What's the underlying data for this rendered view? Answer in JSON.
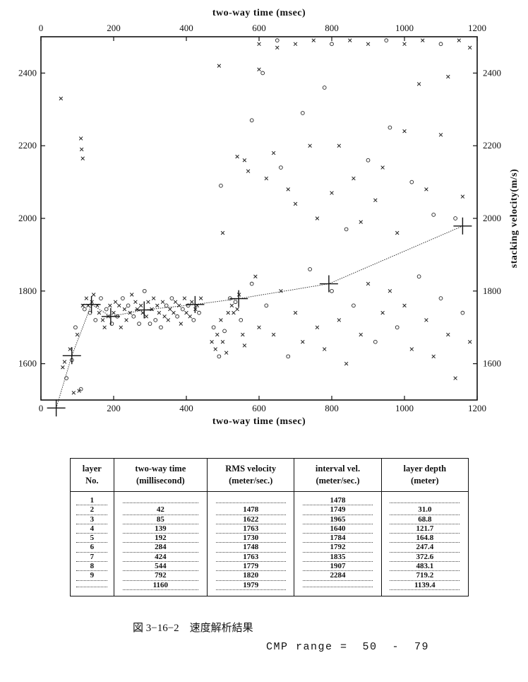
{
  "chart_data": {
    "type": "scatter",
    "x_axis_label": "two-way time (msec)",
    "y_axis_label": "stacking velocity(m/s)",
    "xlim": [
      0,
      1200
    ],
    "ylim": [
      1500,
      2500
    ],
    "x_ticks": [
      0,
      200,
      400,
      600,
      800,
      1000,
      1200
    ],
    "y_ticks": [
      1600,
      1800,
      2000,
      2200,
      2400
    ],
    "grid": false,
    "velocity_picks": [
      [
        42,
        1478
      ],
      [
        85,
        1622
      ],
      [
        139,
        1763
      ],
      [
        192,
        1730
      ],
      [
        284,
        1748
      ],
      [
        424,
        1763
      ],
      [
        544,
        1779
      ],
      [
        792,
        1820
      ],
      [
        1160,
        1979
      ]
    ],
    "semblance_points": [
      [
        60,
        1590,
        "x"
      ],
      [
        65,
        1605,
        "x"
      ],
      [
        70,
        1560,
        "o"
      ],
      [
        80,
        1640,
        "x"
      ],
      [
        85,
        1610,
        "o"
      ],
      [
        90,
        1520,
        "x"
      ],
      [
        95,
        1700,
        "o"
      ],
      [
        100,
        1680,
        "x"
      ],
      [
        105,
        1525,
        "x"
      ],
      [
        110,
        1530,
        "o"
      ],
      [
        115,
        1760,
        "x"
      ],
      [
        120,
        1750,
        "o"
      ],
      [
        125,
        1780,
        "x"
      ],
      [
        130,
        1760,
        "x"
      ],
      [
        135,
        1740,
        "o"
      ],
      [
        140,
        1770,
        "x"
      ],
      [
        145,
        1790,
        "x"
      ],
      [
        150,
        1720,
        "o"
      ],
      [
        155,
        1760,
        "x"
      ],
      [
        160,
        1740,
        "x"
      ],
      [
        165,
        1780,
        "o"
      ],
      [
        170,
        1720,
        "x"
      ],
      [
        175,
        1700,
        "x"
      ],
      [
        180,
        1750,
        "o"
      ],
      [
        185,
        1730,
        "x"
      ],
      [
        190,
        1760,
        "x"
      ],
      [
        195,
        1710,
        "o"
      ],
      [
        200,
        1740,
        "x"
      ],
      [
        205,
        1770,
        "x"
      ],
      [
        210,
        1730,
        "o"
      ],
      [
        215,
        1760,
        "x"
      ],
      [
        220,
        1700,
        "x"
      ],
      [
        225,
        1780,
        "o"
      ],
      [
        230,
        1750,
        "x"
      ],
      [
        235,
        1720,
        "x"
      ],
      [
        240,
        1760,
        "o"
      ],
      [
        245,
        1740,
        "x"
      ],
      [
        250,
        1790,
        "x"
      ],
      [
        255,
        1730,
        "o"
      ],
      [
        260,
        1770,
        "x"
      ],
      [
        265,
        1750,
        "x"
      ],
      [
        270,
        1710,
        "o"
      ],
      [
        275,
        1760,
        "x"
      ],
      [
        280,
        1740,
        "x"
      ],
      [
        285,
        1800,
        "o"
      ],
      [
        290,
        1730,
        "x"
      ],
      [
        295,
        1770,
        "x"
      ],
      [
        300,
        1710,
        "o"
      ],
      [
        305,
        1750,
        "x"
      ],
      [
        310,
        1780,
        "x"
      ],
      [
        315,
        1720,
        "o"
      ],
      [
        320,
        1760,
        "x"
      ],
      [
        325,
        1740,
        "x"
      ],
      [
        330,
        1700,
        "o"
      ],
      [
        335,
        1770,
        "x"
      ],
      [
        340,
        1730,
        "x"
      ],
      [
        345,
        1760,
        "o"
      ],
      [
        350,
        1720,
        "x"
      ],
      [
        355,
        1750,
        "x"
      ],
      [
        360,
        1780,
        "o"
      ],
      [
        365,
        1740,
        "x"
      ],
      [
        370,
        1770,
        "x"
      ],
      [
        375,
        1730,
        "o"
      ],
      [
        380,
        1760,
        "x"
      ],
      [
        385,
        1710,
        "x"
      ],
      [
        390,
        1750,
        "o"
      ],
      [
        395,
        1780,
        "x"
      ],
      [
        400,
        1740,
        "x"
      ],
      [
        405,
        1760,
        "o"
      ],
      [
        410,
        1730,
        "x"
      ],
      [
        415,
        1770,
        "x"
      ],
      [
        420,
        1720,
        "o"
      ],
      [
        425,
        1750,
        "x"
      ],
      [
        430,
        1760,
        "x"
      ],
      [
        435,
        1740,
        "o"
      ],
      [
        440,
        1780,
        "x"
      ],
      [
        470,
        1660,
        "x"
      ],
      [
        475,
        1700,
        "o"
      ],
      [
        480,
        1640,
        "x"
      ],
      [
        485,
        1680,
        "x"
      ],
      [
        490,
        1620,
        "o"
      ],
      [
        495,
        1720,
        "x"
      ],
      [
        500,
        1660,
        "x"
      ],
      [
        505,
        1690,
        "o"
      ],
      [
        510,
        1630,
        "x"
      ],
      [
        515,
        1740,
        "x"
      ],
      [
        520,
        1780,
        "o"
      ],
      [
        525,
        1760,
        "x"
      ],
      [
        530,
        1740,
        "x"
      ],
      [
        535,
        1770,
        "o"
      ],
      [
        540,
        1750,
        "x"
      ],
      [
        545,
        1790,
        "x"
      ],
      [
        550,
        1720,
        "o"
      ],
      [
        555,
        1680,
        "x"
      ],
      [
        560,
        1650,
        "x"
      ],
      [
        580,
        1820,
        "o"
      ],
      [
        590,
        1840,
        "x"
      ],
      [
        600,
        1700,
        "x"
      ],
      [
        620,
        1760,
        "o"
      ],
      [
        640,
        1680,
        "x"
      ],
      [
        660,
        1800,
        "x"
      ],
      [
        680,
        1620,
        "o"
      ],
      [
        700,
        1740,
        "x"
      ],
      [
        720,
        1660,
        "x"
      ],
      [
        740,
        1860,
        "o"
      ],
      [
        760,
        1700,
        "x"
      ],
      [
        780,
        1640,
        "x"
      ],
      [
        800,
        1800,
        "o"
      ],
      [
        820,
        1720,
        "x"
      ],
      [
        840,
        1600,
        "x"
      ],
      [
        860,
        1760,
        "o"
      ],
      [
        880,
        1680,
        "x"
      ],
      [
        900,
        1820,
        "x"
      ],
      [
        920,
        1660,
        "o"
      ],
      [
        940,
        1740,
        "x"
      ],
      [
        960,
        1800,
        "x"
      ],
      [
        980,
        1700,
        "o"
      ],
      [
        1000,
        1760,
        "x"
      ],
      [
        1020,
        1640,
        "x"
      ],
      [
        1040,
        1840,
        "o"
      ],
      [
        1060,
        1720,
        "x"
      ],
      [
        1080,
        1620,
        "x"
      ],
      [
        1100,
        1780,
        "o"
      ],
      [
        1120,
        1680,
        "x"
      ],
      [
        1140,
        1560,
        "x"
      ],
      [
        1160,
        1740,
        "o"
      ],
      [
        1180,
        1660,
        "x"
      ],
      [
        55,
        2330,
        "x"
      ],
      [
        110,
        2220,
        "x"
      ],
      [
        112,
        2190,
        "x"
      ],
      [
        115,
        2165,
        "x"
      ],
      [
        490,
        2420,
        "x"
      ],
      [
        495,
        2090,
        "o"
      ],
      [
        500,
        1960,
        "x"
      ],
      [
        540,
        2170,
        "x"
      ],
      [
        560,
        2160,
        "x"
      ],
      [
        570,
        2130,
        "x"
      ],
      [
        580,
        2270,
        "o"
      ],
      [
        600,
        2410,
        "x"
      ],
      [
        610,
        2400,
        "o"
      ],
      [
        620,
        2110,
        "x"
      ],
      [
        640,
        2180,
        "x"
      ],
      [
        650,
        2470,
        "x"
      ],
      [
        660,
        2140,
        "o"
      ],
      [
        680,
        2080,
        "x"
      ],
      [
        700,
        2040,
        "x"
      ],
      [
        720,
        2290,
        "o"
      ],
      [
        740,
        2200,
        "x"
      ],
      [
        760,
        2000,
        "x"
      ],
      [
        780,
        2360,
        "o"
      ],
      [
        800,
        2070,
        "x"
      ],
      [
        820,
        2200,
        "x"
      ],
      [
        840,
        1970,
        "o"
      ],
      [
        860,
        2110,
        "x"
      ],
      [
        880,
        1990,
        "x"
      ],
      [
        900,
        2160,
        "o"
      ],
      [
        920,
        2050,
        "x"
      ],
      [
        940,
        2140,
        "x"
      ],
      [
        960,
        2250,
        "o"
      ],
      [
        980,
        1960,
        "x"
      ],
      [
        1000,
        2240,
        "x"
      ],
      [
        1020,
        2100,
        "o"
      ],
      [
        1040,
        2370,
        "x"
      ],
      [
        1060,
        2080,
        "x"
      ],
      [
        1080,
        2010,
        "o"
      ],
      [
        1100,
        2230,
        "x"
      ],
      [
        1120,
        2390,
        "x"
      ],
      [
        1140,
        2000,
        "o"
      ],
      [
        1160,
        2060,
        "x"
      ],
      [
        1180,
        2470,
        "x"
      ],
      [
        600,
        2480,
        "x"
      ],
      [
        650,
        2490,
        "o"
      ],
      [
        700,
        2480,
        "x"
      ],
      [
        750,
        2490,
        "x"
      ],
      [
        800,
        2480,
        "o"
      ],
      [
        850,
        2490,
        "x"
      ],
      [
        900,
        2480,
        "x"
      ],
      [
        950,
        2490,
        "o"
      ],
      [
        1000,
        2480,
        "x"
      ],
      [
        1050,
        2490,
        "x"
      ],
      [
        1100,
        2480,
        "o"
      ],
      [
        1150,
        2490,
        "x"
      ]
    ]
  },
  "table": {
    "headers": [
      [
        "layer",
        "No."
      ],
      [
        "two-way time",
        "(millisecond)"
      ],
      [
        "RMS velocity",
        "(meter/sec.)"
      ],
      [
        "interval vel.",
        "(meter/sec.)"
      ],
      [
        "layer depth",
        "(meter)"
      ]
    ],
    "rows": [
      {
        "no": "1",
        "time": "",
        "rms": "",
        "interval": "1478",
        "depth": ""
      },
      {
        "no": "2",
        "time": "42",
        "rms": "1478",
        "interval": "1749",
        "depth": "31.0"
      },
      {
        "no": "3",
        "time": "85",
        "rms": "1622",
        "interval": "1965",
        "depth": "68.8"
      },
      {
        "no": "4",
        "time": "139",
        "rms": "1763",
        "interval": "1640",
        "depth": "121.7"
      },
      {
        "no": "5",
        "time": "192",
        "rms": "1730",
        "interval": "1784",
        "depth": "164.8"
      },
      {
        "no": "6",
        "time": "284",
        "rms": "1748",
        "interval": "1792",
        "depth": "247.4"
      },
      {
        "no": "7",
        "time": "424",
        "rms": "1763",
        "interval": "1835",
        "depth": "372.6"
      },
      {
        "no": "8",
        "time": "544",
        "rms": "1779",
        "interval": "1907",
        "depth": "483.1"
      },
      {
        "no": "9",
        "time": "792",
        "rms": "1820",
        "interval": "2284",
        "depth": "719.2"
      },
      {
        "no": "",
        "time": "1160",
        "rms": "1979",
        "interval": "",
        "depth": "1139.4"
      }
    ]
  },
  "caption": "図 3−16−2　速度解析結果",
  "cmp_range": "CMP range =  50  -  79"
}
